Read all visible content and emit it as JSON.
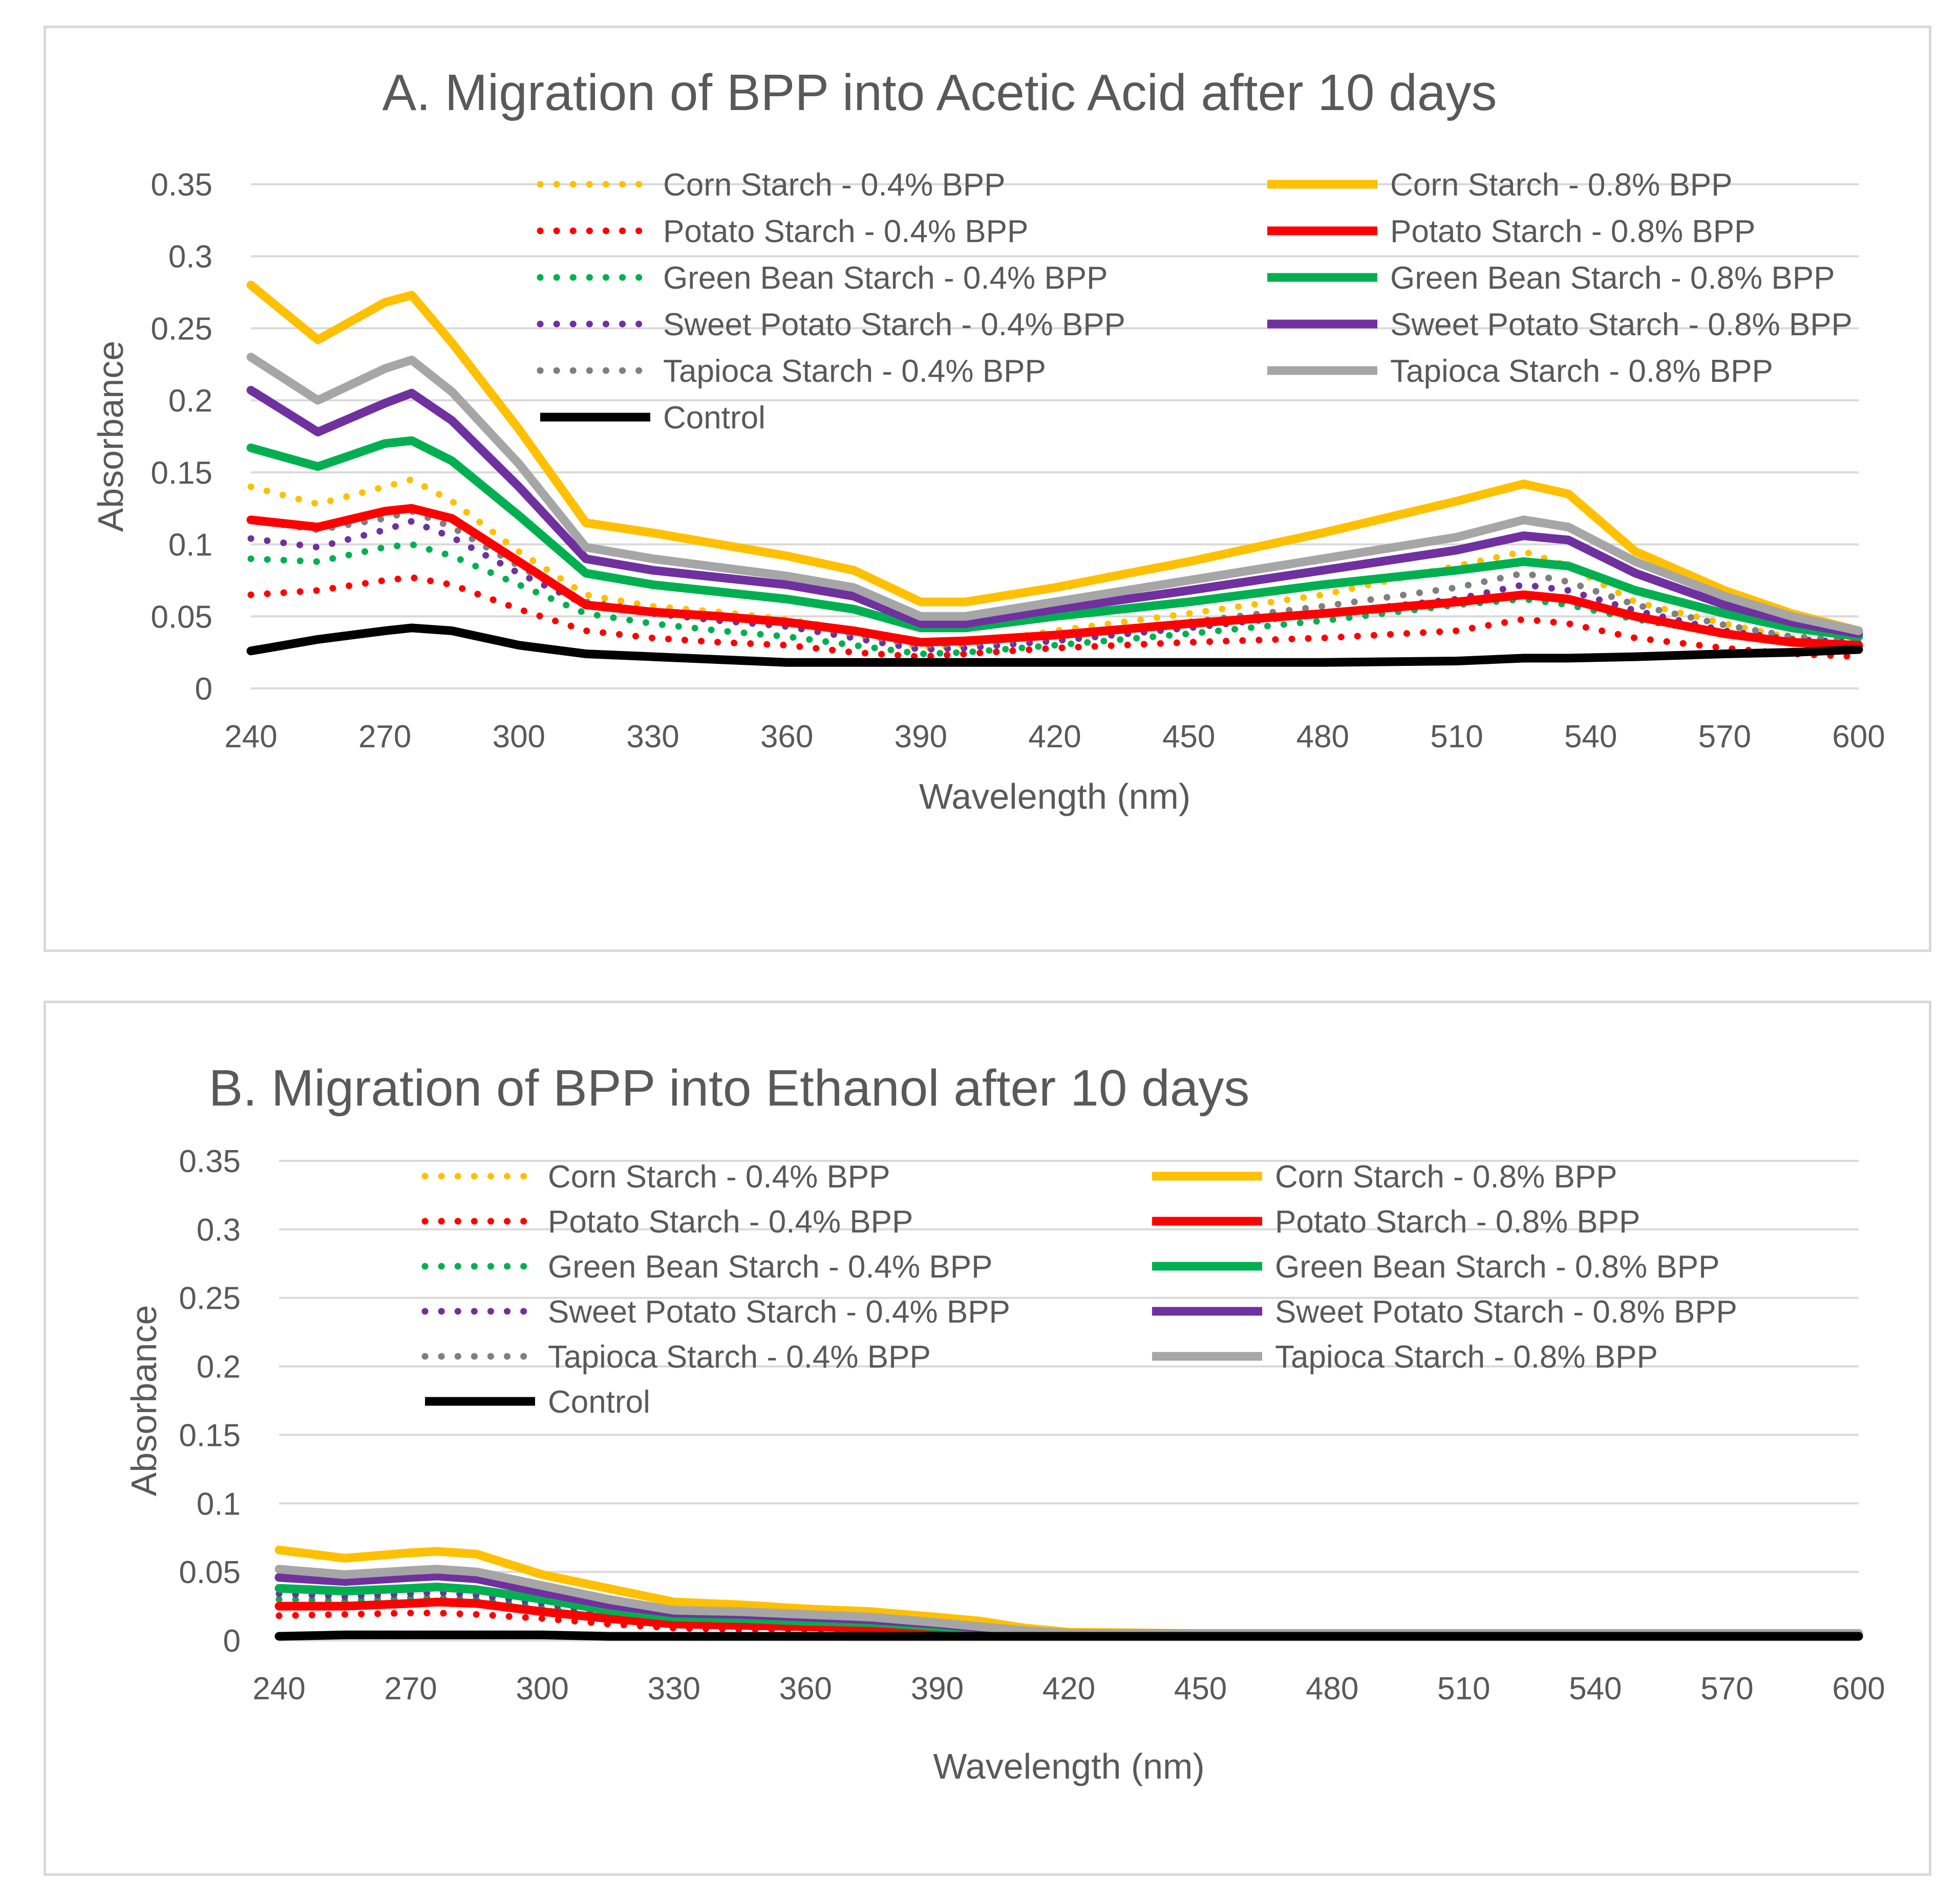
{
  "chart_data": [
    {
      "type": "line",
      "title": "A. Migration of BPP into Acetic Acid after 10 days",
      "xlabel": "Wavelength (nm)",
      "ylabel": "Absorbance",
      "xlim": [
        240,
        600
      ],
      "ylim": [
        0,
        0.35
      ],
      "xticks": [
        "240",
        "270",
        "300",
        "330",
        "360",
        "390",
        "420",
        "450",
        "480",
        "510",
        "540",
        "570",
        "600"
      ],
      "yticks": [
        "0",
        "0.05",
        "0.1",
        "0.15",
        "0.2",
        "0.25",
        "0.3",
        "0.35"
      ],
      "grid": "horizontal",
      "legend_position": "top-right",
      "x": [
        240,
        255,
        270,
        276,
        285,
        300,
        315,
        330,
        345,
        360,
        375,
        390,
        400,
        420,
        450,
        480,
        510,
        525,
        535,
        550,
        570,
        585,
        600
      ],
      "series": [
        {
          "name": "Corn Starch - 0.4% BPP",
          "color": "#FFC000",
          "style": "dotted",
          "values": [
            0.14,
            0.128,
            0.14,
            0.145,
            0.13,
            0.095,
            0.065,
            0.057,
            0.053,
            0.048,
            0.04,
            0.028,
            0.03,
            0.04,
            0.052,
            0.065,
            0.085,
            0.095,
            0.085,
            0.06,
            0.045,
            0.035,
            0.03
          ]
        },
        {
          "name": "Corn Starch - 0.8% BPP",
          "color": "#FFC000",
          "style": "solid",
          "values": [
            0.28,
            0.242,
            0.268,
            0.273,
            0.24,
            0.18,
            0.115,
            0.108,
            0.1,
            0.092,
            0.082,
            0.06,
            0.06,
            0.07,
            0.088,
            0.108,
            0.13,
            0.142,
            0.135,
            0.095,
            0.068,
            0.052,
            0.04
          ]
        },
        {
          "name": "Potato Starch - 0.4% BPP",
          "color": "#FF0000",
          "style": "dotted",
          "values": [
            0.065,
            0.068,
            0.075,
            0.077,
            0.072,
            0.055,
            0.04,
            0.035,
            0.032,
            0.03,
            0.025,
            0.022,
            0.024,
            0.028,
            0.032,
            0.035,
            0.04,
            0.048,
            0.045,
            0.035,
            0.028,
            0.024,
            0.022
          ]
        },
        {
          "name": "Potato Starch - 0.8% BPP",
          "color": "#FF0000",
          "style": "solid",
          "values": [
            0.117,
            0.112,
            0.123,
            0.125,
            0.118,
            0.088,
            0.058,
            0.053,
            0.05,
            0.046,
            0.04,
            0.032,
            0.033,
            0.037,
            0.045,
            0.052,
            0.06,
            0.065,
            0.062,
            0.05,
            0.038,
            0.032,
            0.03
          ]
        },
        {
          "name": "Green Bean Starch - 0.4% BPP",
          "color": "#00B050",
          "style": "dotted",
          "values": [
            0.09,
            0.088,
            0.098,
            0.1,
            0.092,
            0.072,
            0.052,
            0.045,
            0.04,
            0.036,
            0.03,
            0.024,
            0.025,
            0.03,
            0.038,
            0.047,
            0.058,
            0.062,
            0.058,
            0.048,
            0.038,
            0.032,
            0.03
          ]
        },
        {
          "name": "Green Bean Starch - 0.8% BPP",
          "color": "#00B050",
          "style": "solid",
          "values": [
            0.167,
            0.154,
            0.17,
            0.172,
            0.158,
            0.12,
            0.08,
            0.072,
            0.067,
            0.062,
            0.055,
            0.042,
            0.042,
            0.05,
            0.06,
            0.072,
            0.082,
            0.088,
            0.085,
            0.068,
            0.052,
            0.042,
            0.036
          ]
        },
        {
          "name": "Sweet Potato Starch - 0.4% BPP",
          "color": "#7030A0",
          "style": "dotted",
          "values": [
            0.104,
            0.098,
            0.11,
            0.116,
            0.105,
            0.08,
            0.058,
            0.052,
            0.047,
            0.043,
            0.035,
            0.027,
            0.028,
            0.033,
            0.042,
            0.052,
            0.062,
            0.072,
            0.068,
            0.054,
            0.04,
            0.034,
            0.032
          ]
        },
        {
          "name": "Sweet Potato Starch - 0.8% BPP",
          "color": "#7030A0",
          "style": "solid",
          "values": [
            0.207,
            0.178,
            0.198,
            0.205,
            0.186,
            0.14,
            0.09,
            0.082,
            0.077,
            0.072,
            0.064,
            0.045,
            0.045,
            0.055,
            0.068,
            0.082,
            0.096,
            0.106,
            0.103,
            0.08,
            0.058,
            0.046,
            0.038
          ]
        },
        {
          "name": "Tapioca Starch - 0.4% BPP",
          "color": "#7F7F7F",
          "style": "dotted",
          "values": [
            0.117,
            0.11,
            0.118,
            0.123,
            0.112,
            0.085,
            0.06,
            0.054,
            0.05,
            0.046,
            0.038,
            0.03,
            0.031,
            0.036,
            0.046,
            0.057,
            0.07,
            0.08,
            0.074,
            0.058,
            0.044,
            0.036,
            0.033
          ]
        },
        {
          "name": "Tapioca Starch - 0.8% BPP",
          "color": "#A6A6A6",
          "style": "solid",
          "values": [
            0.23,
            0.2,
            0.222,
            0.228,
            0.206,
            0.156,
            0.098,
            0.09,
            0.084,
            0.078,
            0.07,
            0.05,
            0.05,
            0.06,
            0.075,
            0.09,
            0.105,
            0.117,
            0.112,
            0.088,
            0.064,
            0.05,
            0.04
          ]
        },
        {
          "name": "Control",
          "color": "#000000",
          "style": "solid",
          "values": [
            0.026,
            0.034,
            0.04,
            0.042,
            0.04,
            0.03,
            0.024,
            0.022,
            0.02,
            0.018,
            0.018,
            0.018,
            0.018,
            0.018,
            0.018,
            0.018,
            0.019,
            0.021,
            0.021,
            0.022,
            0.024,
            0.025,
            0.027
          ]
        }
      ]
    },
    {
      "type": "line",
      "title": "B. Migration of BPP into Ethanol after 10 days",
      "xlabel": "Wavelength (nm)",
      "ylabel": "Absorbance",
      "xlim": [
        240,
        600
      ],
      "ylim": [
        0,
        0.35
      ],
      "xticks": [
        "240",
        "270",
        "300",
        "330",
        "360",
        "390",
        "420",
        "450",
        "480",
        "510",
        "540",
        "570",
        "600"
      ],
      "yticks": [
        "0",
        "0.05",
        "0.1",
        "0.15",
        "0.2",
        "0.25",
        "0.3",
        "0.35"
      ],
      "grid": "horizontal",
      "legend_position": "top",
      "x": [
        240,
        255,
        270,
        276,
        285,
        300,
        315,
        330,
        345,
        360,
        375,
        390,
        400,
        410,
        420,
        450,
        480,
        510,
        540,
        570,
        600
      ],
      "series": [
        {
          "name": "Corn Starch - 0.4% BPP",
          "color": "#FFC000",
          "style": "dotted",
          "values": [
            0.046,
            0.042,
            0.046,
            0.047,
            0.044,
            0.035,
            0.025,
            0.02,
            0.018,
            0.016,
            0.014,
            0.01,
            0.008,
            0.006,
            0.005,
            0.005,
            0.005,
            0.005,
            0.005,
            0.005,
            0.005
          ]
        },
        {
          "name": "Corn Starch - 0.8% BPP",
          "color": "#FFC000",
          "style": "solid",
          "values": [
            0.066,
            0.06,
            0.064,
            0.065,
            0.063,
            0.048,
            0.038,
            0.028,
            0.026,
            0.023,
            0.021,
            0.017,
            0.014,
            0.009,
            0.006,
            0.005,
            0.005,
            0.005,
            0.005,
            0.005,
            0.005
          ]
        },
        {
          "name": "Potato Starch - 0.4% BPP",
          "color": "#FF0000",
          "style": "dotted",
          "values": [
            0.018,
            0.019,
            0.02,
            0.02,
            0.019,
            0.016,
            0.012,
            0.009,
            0.008,
            0.008,
            0.007,
            0.006,
            0.005,
            0.005,
            0.005,
            0.005,
            0.005,
            0.005,
            0.005,
            0.005,
            0.005
          ]
        },
        {
          "name": "Potato Starch - 0.8% BPP",
          "color": "#FF0000",
          "style": "solid",
          "values": [
            0.025,
            0.025,
            0.027,
            0.028,
            0.027,
            0.021,
            0.016,
            0.012,
            0.011,
            0.01,
            0.009,
            0.007,
            0.006,
            0.005,
            0.005,
            0.005,
            0.005,
            0.005,
            0.005,
            0.005,
            0.005
          ]
        },
        {
          "name": "Green Bean Starch - 0.4% BPP",
          "color": "#00B050",
          "style": "dotted",
          "values": [
            0.03,
            0.029,
            0.031,
            0.031,
            0.03,
            0.024,
            0.018,
            0.014,
            0.013,
            0.012,
            0.011,
            0.008,
            0.007,
            0.006,
            0.005,
            0.005,
            0.005,
            0.005,
            0.005,
            0.005,
            0.005
          ]
        },
        {
          "name": "Green Bean Starch - 0.8% BPP",
          "color": "#00B050",
          "style": "solid",
          "values": [
            0.038,
            0.036,
            0.038,
            0.039,
            0.037,
            0.03,
            0.022,
            0.017,
            0.016,
            0.014,
            0.013,
            0.01,
            0.008,
            0.006,
            0.005,
            0.005,
            0.005,
            0.005,
            0.005,
            0.005,
            0.005
          ]
        },
        {
          "name": "Sweet Potato Starch - 0.4% BPP",
          "color": "#7030A0",
          "style": "dotted",
          "values": [
            0.034,
            0.032,
            0.034,
            0.035,
            0.033,
            0.027,
            0.02,
            0.016,
            0.014,
            0.013,
            0.012,
            0.009,
            0.007,
            0.006,
            0.005,
            0.005,
            0.005,
            0.005,
            0.005,
            0.005,
            0.005
          ]
        },
        {
          "name": "Sweet Potato Starch - 0.8% BPP",
          "color": "#7030A0",
          "style": "solid",
          "values": [
            0.046,
            0.043,
            0.046,
            0.047,
            0.045,
            0.035,
            0.026,
            0.02,
            0.019,
            0.017,
            0.015,
            0.012,
            0.009,
            0.007,
            0.005,
            0.005,
            0.005,
            0.005,
            0.005,
            0.005,
            0.005
          ]
        },
        {
          "name": "Tapioca Starch - 0.4% BPP",
          "color": "#7F7F7F",
          "style": "dotted",
          "values": [
            0.038,
            0.036,
            0.038,
            0.039,
            0.037,
            0.03,
            0.022,
            0.017,
            0.016,
            0.015,
            0.013,
            0.01,
            0.008,
            0.006,
            0.005,
            0.005,
            0.005,
            0.005,
            0.005,
            0.005,
            0.005
          ]
        },
        {
          "name": "Tapioca Starch - 0.8% BPP",
          "color": "#A6A6A6",
          "style": "solid",
          "values": [
            0.052,
            0.048,
            0.051,
            0.052,
            0.05,
            0.04,
            0.03,
            0.022,
            0.021,
            0.019,
            0.017,
            0.013,
            0.01,
            0.007,
            0.005,
            0.005,
            0.005,
            0.005,
            0.005,
            0.005,
            0.005
          ]
        },
        {
          "name": "Control",
          "color": "#000000",
          "style": "solid",
          "values": [
            0.003,
            0.004,
            0.004,
            0.004,
            0.004,
            0.004,
            0.003,
            0.003,
            0.003,
            0.003,
            0.003,
            0.003,
            0.003,
            0.003,
            0.003,
            0.003,
            0.003,
            0.003,
            0.003,
            0.003,
            0.003
          ]
        }
      ]
    }
  ]
}
